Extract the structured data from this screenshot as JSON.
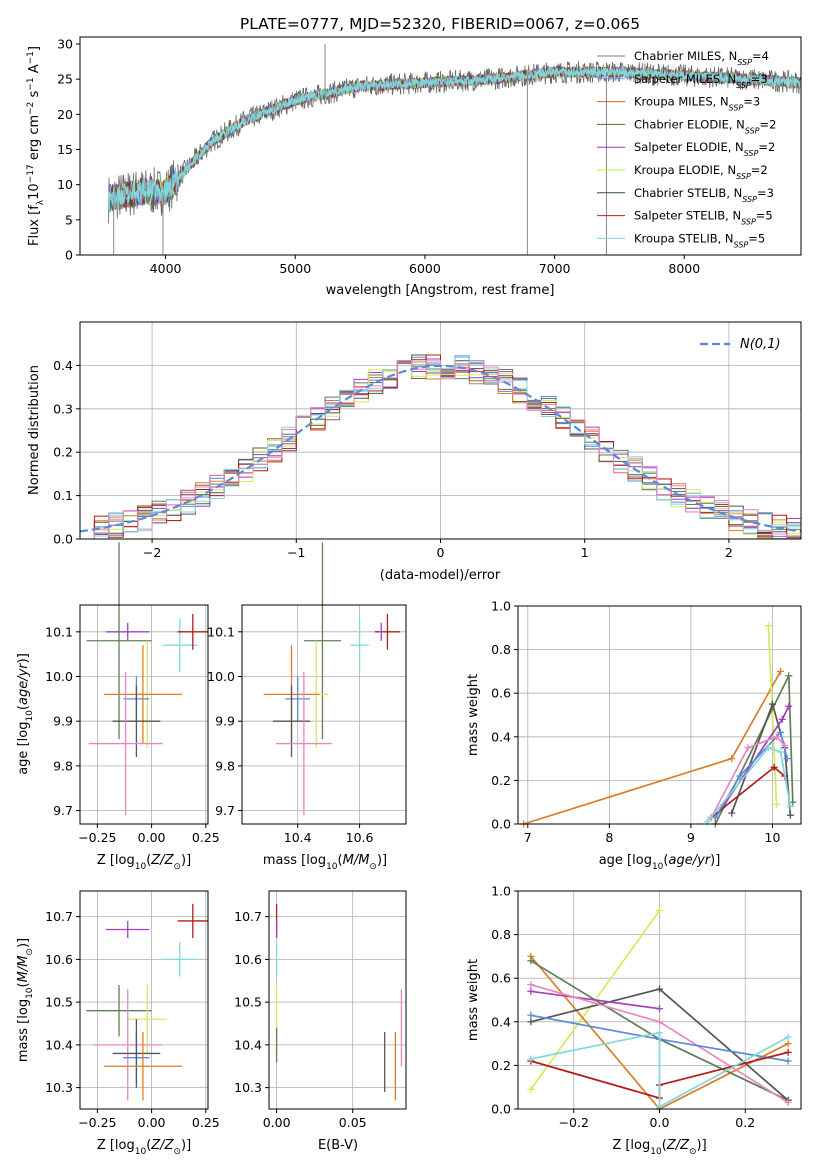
{
  "figure_title": "PLATE=0777, MJD=52320, FIBERID=0067, z=0.065",
  "series_colors": [
    "#708090",
    "#6495ED",
    "#D2691E",
    "#556B2F",
    "#9932CC",
    "#ADFF2F",
    "#2F4F4F",
    "#B22222",
    "#87CEEB"
  ],
  "model_colors": [
    "#666666",
    "#5b8bd6",
    "#dd7d2a",
    "#5f7f56",
    "#a53fc0",
    "#d8e85a",
    "#555555",
    "#b31b1b",
    "#7fd8dc",
    "#e986c0"
  ],
  "chart_data": [
    {
      "id": "spectrum",
      "type": "line",
      "title": "PLATE=0777, MJD=52320, FIBERID=0067, z=0.065",
      "xlabel": "wavelength [Angstrom, rest frame]",
      "ylabel": "Flux [f_λ 10⁻¹⁷ erg cm⁻² s⁻¹ A⁻¹]",
      "xlim": [
        3340,
        8900
      ],
      "ylim": [
        0,
        31
      ],
      "xticks": [
        4000,
        5000,
        6000,
        7000,
        8000
      ],
      "yticks": [
        0,
        5,
        10,
        15,
        20,
        25,
        30
      ],
      "legend_position": "top-right",
      "legend": [
        {
          "name": "Chabrier MILES, N_SSP=4",
          "base": "Chabrier MILES, N",
          "sub": "SSP",
          "tail": "=4",
          "color": "#708090"
        },
        {
          "name": "Salpeter MILES, N_SSP=3",
          "base": "Salpeter MILES, N",
          "sub": "SSP",
          "tail": "=3",
          "color": "#6495ED"
        },
        {
          "name": "Kroupa MILES, N_SSP=3",
          "base": "Kroupa MILES, N",
          "sub": "SSP",
          "tail": "=3",
          "color": "#D2691E"
        },
        {
          "name": "Chabrier ELODIE, N_SSP=2",
          "base": "Chabrier ELODIE, N",
          "sub": "SSP",
          "tail": "=2",
          "color": "#556B2F"
        },
        {
          "name": "Salpeter ELODIE, N_SSP=2",
          "base": "Salpeter ELODIE, N",
          "sub": "SSP",
          "tail": "=2",
          "color": "#9932CC"
        },
        {
          "name": "Kroupa ELODIE, N_SSP=2",
          "base": "Kroupa ELODIE, N",
          "sub": "SSP",
          "tail": "=2",
          "color": "#ADFF2F"
        },
        {
          "name": "Chabrier STELIB, N_SSP=3",
          "base": "Chabrier STELIB, N",
          "sub": "SSP",
          "tail": "=3",
          "color": "#2F4F4F"
        },
        {
          "name": "Salpeter STELIB, N_SSP=5",
          "base": "Salpeter STELIB, N",
          "sub": "SSP",
          "tail": "=5",
          "color": "#B22222"
        },
        {
          "name": "Kroupa STELIB, N_SSP=5",
          "base": "Kroupa STELIB, N",
          "sub": "SSP",
          "tail": "=5",
          "color": "#87CEEB"
        }
      ],
      "spectrum_range": [
        3560,
        8900
      ],
      "spectrum_trend": [
        [
          3560,
          8
        ],
        [
          3800,
          9
        ],
        [
          4000,
          9
        ],
        [
          4150,
          12
        ],
        [
          4350,
          16
        ],
        [
          4600,
          19
        ],
        [
          5000,
          22
        ],
        [
          5500,
          24
        ],
        [
          6000,
          24.5
        ],
        [
          6500,
          25
        ],
        [
          7000,
          26
        ],
        [
          7500,
          26
        ],
        [
          8000,
          25.5
        ],
        [
          8500,
          25
        ],
        [
          8900,
          24.5
        ]
      ],
      "spikes": [
        [
          3600,
          0
        ],
        [
          3980,
          0
        ],
        [
          5230,
          30
        ],
        [
          6790,
          0
        ],
        [
          7400,
          0
        ]
      ]
    },
    {
      "id": "residuals",
      "type": "histogram",
      "xlabel": "(data-model)/error",
      "ylabel": "Normed distribution",
      "xlim": [
        -2.5,
        2.5
      ],
      "ylim": [
        0,
        0.5
      ],
      "xticks": [
        -2,
        -1,
        0,
        1,
        2
      ],
      "yticks": [
        0,
        0.1,
        0.2,
        0.3,
        0.4
      ],
      "bin_width": 0.1,
      "grid": true,
      "legend_position": "top-right",
      "gaussian_label": "N(0,1)",
      "gaussian_color": "#5b8bd6"
    },
    {
      "id": "age_vs_Z",
      "type": "errorbar",
      "xlabel": "Z [log10(Z/Z⊙)]",
      "ylabel": "age [log10(age/yr)]",
      "xlim": [
        -0.33,
        0.26
      ],
      "ylim": [
        9.67,
        10.16
      ],
      "xticks": [
        -0.25,
        0.0,
        0.25
      ],
      "yticks": [
        9.7,
        9.8,
        9.9,
        10.0,
        10.1
      ],
      "grid": true,
      "points": [
        {
          "x": 0.13,
          "y": 10.07,
          "xerr": 0.08,
          "yerr": 0.06,
          "color": "#7fd8dc"
        },
        {
          "x": 0.19,
          "y": 10.1,
          "xerr": 0.07,
          "yerr": 0.04,
          "color": "#b31b1b"
        },
        {
          "x": -0.11,
          "y": 10.1,
          "xerr": 0.1,
          "yerr": 0.02,
          "color": "#a53fc0"
        },
        {
          "x": -0.15,
          "y": 10.08,
          "xerr": 0.15,
          "yerr": 0.22,
          "color": "#5f7f56"
        },
        {
          "x": -0.02,
          "y": 9.96,
          "xerr": 0.09,
          "yerr": 0.12,
          "color": "#d8e85a"
        },
        {
          "x": -0.04,
          "y": 9.96,
          "xerr": 0.18,
          "yerr": 0.11,
          "color": "#dd7d2a"
        },
        {
          "x": -0.07,
          "y": 9.95,
          "xerr": 0.06,
          "yerr": 0.05,
          "color": "#5b8bd6"
        },
        {
          "x": -0.07,
          "y": 9.9,
          "xerr": 0.11,
          "yerr": 0.08,
          "color": "#555555"
        },
        {
          "x": -0.12,
          "y": 9.85,
          "xerr": 0.17,
          "yerr": 0.16,
          "color": "#e986c0"
        }
      ]
    },
    {
      "id": "age_vs_mass",
      "type": "errorbar",
      "xlabel": "mass [log10(M/M⊙)]",
      "xlim": [
        10.22,
        10.75
      ],
      "ylim": [
        9.67,
        10.16
      ],
      "xticks": [
        10.4,
        10.6
      ],
      "yticks": [
        9.7,
        9.8,
        9.9,
        10.0,
        10.1
      ],
      "grid": true,
      "points": [
        {
          "x": 10.6,
          "y": 10.07,
          "xerr": 0.03,
          "yerr": 0.06,
          "color": "#7fd8dc"
        },
        {
          "x": 10.69,
          "y": 10.1,
          "xerr": 0.04,
          "yerr": 0.04,
          "color": "#b31b1b"
        },
        {
          "x": 10.67,
          "y": 10.1,
          "xerr": 0.01,
          "yerr": 0.02,
          "color": "#a53fc0"
        },
        {
          "x": 10.48,
          "y": 10.08,
          "xerr": 0.06,
          "yerr": 0.22,
          "color": "#5f7f56"
        },
        {
          "x": 10.46,
          "y": 9.96,
          "xerr": 0.04,
          "yerr": 0.12,
          "color": "#d8e85a"
        },
        {
          "x": 10.38,
          "y": 9.96,
          "xerr": 0.09,
          "yerr": 0.11,
          "color": "#dd7d2a"
        },
        {
          "x": 10.4,
          "y": 9.95,
          "xerr": 0.04,
          "yerr": 0.05,
          "color": "#5b8bd6"
        },
        {
          "x": 10.38,
          "y": 9.9,
          "xerr": 0.06,
          "yerr": 0.08,
          "color": "#555555"
        },
        {
          "x": 10.42,
          "y": 9.85,
          "xerr": 0.09,
          "yerr": 0.16,
          "color": "#e986c0"
        }
      ]
    },
    {
      "id": "weight_vs_age",
      "type": "line",
      "xlabel": "age [log10(age/yr)]",
      "ylabel": "mass weight",
      "xlim": [
        6.88,
        10.35
      ],
      "ylim": [
        0,
        1.0
      ],
      "xticks": [
        7,
        8,
        9,
        10
      ],
      "yticks": [
        0.0,
        0.2,
        0.4,
        0.6,
        0.8,
        1.0
      ],
      "grid": true,
      "series": [
        {
          "color": "#dd7d2a",
          "points": [
            [
              6.95,
              0.0
            ],
            [
              9.5,
              0.3
            ],
            [
              10.1,
              0.7
            ]
          ]
        },
        {
          "color": "#d8e85a",
          "points": [
            [
              9.95,
              0.91
            ],
            [
              10.05,
              0.09
            ]
          ]
        },
        {
          "color": "#5f7f56",
          "points": [
            [
              9.3,
              0.0
            ],
            [
              10.2,
              0.68
            ],
            [
              10.25,
              0.1
            ]
          ]
        },
        {
          "color": "#555555",
          "points": [
            [
              9.5,
              0.05
            ],
            [
              10.0,
              0.55
            ],
            [
              10.15,
              0.35
            ],
            [
              10.22,
              0.04
            ]
          ]
        },
        {
          "color": "#a53fc0",
          "points": [
            [
              9.3,
              0.03
            ],
            [
              10.12,
              0.48
            ],
            [
              10.2,
              0.54
            ]
          ]
        },
        {
          "color": "#b31b1b",
          "points": [
            [
              9.25,
              0.03
            ],
            [
              10.02,
              0.26
            ],
            [
              10.15,
              0.22
            ]
          ]
        },
        {
          "color": "#5b8bd6",
          "points": [
            [
              9.3,
              0.03
            ],
            [
              9.6,
              0.22
            ],
            [
              10.1,
              0.42
            ],
            [
              10.18,
              0.3
            ]
          ]
        },
        {
          "color": "#e986c0",
          "points": [
            [
              9.25,
              0.03
            ],
            [
              9.7,
              0.35
            ],
            [
              10.05,
              0.4
            ],
            [
              10.15,
              0.36
            ]
          ]
        },
        {
          "color": "#7fd8dc",
          "points": [
            [
              9.2,
              0.01
            ],
            [
              9.95,
              0.35
            ],
            [
              10.1,
              0.33
            ],
            [
              10.22,
              0.08
            ]
          ]
        }
      ]
    },
    {
      "id": "mass_vs_Z",
      "type": "errorbar",
      "xlabel": "Z [log10(Z/Z⊙)]",
      "ylabel": "mass [log10(M/M⊙)]",
      "xlim": [
        -0.33,
        0.26
      ],
      "ylim": [
        10.25,
        10.76
      ],
      "xticks": [
        -0.25,
        0.0,
        0.25
      ],
      "yticks": [
        10.3,
        10.4,
        10.5,
        10.6,
        10.7
      ],
      "grid": true,
      "points": [
        {
          "x": 0.19,
          "y": 10.69,
          "xerr": 0.07,
          "yerr": 0.04,
          "color": "#b31b1b"
        },
        {
          "x": -0.11,
          "y": 10.67,
          "xerr": 0.1,
          "yerr": 0.02,
          "color": "#a53fc0"
        },
        {
          "x": 0.13,
          "y": 10.6,
          "xerr": 0.08,
          "yerr": 0.04,
          "color": "#7fd8dc"
        },
        {
          "x": -0.15,
          "y": 10.48,
          "xerr": 0.15,
          "yerr": 0.06,
          "color": "#5f7f56"
        },
        {
          "x": -0.02,
          "y": 10.46,
          "xerr": 0.09,
          "yerr": 0.08,
          "color": "#d8e85a"
        },
        {
          "x": -0.11,
          "y": 10.4,
          "xerr": 0.16,
          "yerr": 0.13,
          "color": "#e986c0"
        },
        {
          "x": -0.07,
          "y": 10.37,
          "xerr": 0.06,
          "yerr": 0.06,
          "color": "#5b8bd6"
        },
        {
          "x": -0.07,
          "y": 10.38,
          "xerr": 0.11,
          "yerr": 0.08,
          "color": "#555555"
        },
        {
          "x": -0.04,
          "y": 10.35,
          "xerr": 0.18,
          "yerr": 0.08,
          "color": "#dd7d2a"
        }
      ]
    },
    {
      "id": "mass_vs_EBV",
      "type": "errorbar",
      "xlabel": "E(B-V)",
      "xlim": [
        -0.005,
        0.085
      ],
      "ylim": [
        10.25,
        10.76
      ],
      "xticks": [
        0.0,
        0.05
      ],
      "yticks": [
        10.3,
        10.4,
        10.5,
        10.6,
        10.7
      ],
      "grid": true,
      "points": [
        {
          "x": 0.0,
          "y": 10.69,
          "xerr": 0,
          "yerr": 0.04,
          "color": "#b31b1b"
        },
        {
          "x": 0.0,
          "y": 10.67,
          "xerr": 0,
          "yerr": 0.02,
          "color": "#a53fc0"
        },
        {
          "x": 0.0,
          "y": 10.6,
          "xerr": 0,
          "yerr": 0.04,
          "color": "#7fd8dc"
        },
        {
          "x": 0.0,
          "y": 10.46,
          "xerr": 0,
          "yerr": 0.08,
          "color": "#d8e85a"
        },
        {
          "x": 0.0,
          "y": 10.4,
          "xerr": 0,
          "yerr": 0.04,
          "color": "#5f7f56"
        },
        {
          "x": 0.071,
          "y": 10.36,
          "xerr": 0,
          "yerr": 0.07,
          "color": "#555555"
        },
        {
          "x": 0.078,
          "y": 10.35,
          "xerr": 0,
          "yerr": 0.08,
          "color": "#dd7d2a"
        },
        {
          "x": 0.082,
          "y": 10.44,
          "xerr": 0,
          "yerr": 0.09,
          "color": "#e986c0"
        }
      ]
    },
    {
      "id": "weight_vs_Z",
      "type": "line",
      "xlabel": "Z [log10(Z/Z⊙)]",
      "ylabel": "mass weight",
      "xlim": [
        -0.33,
        0.33
      ],
      "ylim": [
        0,
        1.0
      ],
      "xticks": [
        -0.2,
        0.0,
        0.2
      ],
      "yticks": [
        0.0,
        0.2,
        0.4,
        0.6,
        0.8,
        1.0
      ],
      "grid": true,
      "series": [
        {
          "color": "#d8e85a",
          "points": [
            [
              -0.3,
              0.09
            ],
            [
              0.0,
              0.91
            ]
          ]
        },
        {
          "color": "#dd7d2a",
          "points": [
            [
              -0.3,
              0.7
            ],
            [
              0.0,
              0.0
            ],
            [
              0.3,
              0.3
            ]
          ]
        },
        {
          "color": "#5f7f56",
          "points": [
            [
              -0.3,
              0.68
            ],
            [
              0.0,
              0.32
            ],
            [
              0.3,
              0.04
            ]
          ]
        },
        {
          "color": "#555555",
          "points": [
            [
              -0.3,
              0.4
            ],
            [
              0.0,
              0.55
            ],
            [
              0.3,
              0.04
            ]
          ]
        },
        {
          "color": "#a53fc0",
          "points": [
            [
              -0.3,
              0.54
            ],
            [
              0.0,
              0.46
            ]
          ]
        },
        {
          "color": "#e986c0",
          "points": [
            [
              -0.3,
              0.57
            ],
            [
              0.0,
              0.4
            ],
            [
              0.3,
              0.03
            ]
          ]
        },
        {
          "color": "#5b8bd6",
          "points": [
            [
              -0.3,
              0.43
            ],
            [
              0.0,
              0.32
            ],
            [
              0.3,
              0.22
            ]
          ]
        },
        {
          "color": "#b31b1b",
          "points": [
            [
              -0.3,
              0.22
            ],
            [
              0.0,
              0.05
            ],
            [
              0.0,
              0.11
            ],
            [
              0.3,
              0.26
            ]
          ]
        },
        {
          "color": "#7fd8dc",
          "points": [
            [
              -0.3,
              0.23
            ],
            [
              0.0,
              0.35
            ],
            [
              0.0,
              0.01
            ],
            [
              0.3,
              0.33
            ]
          ]
        }
      ]
    }
  ]
}
